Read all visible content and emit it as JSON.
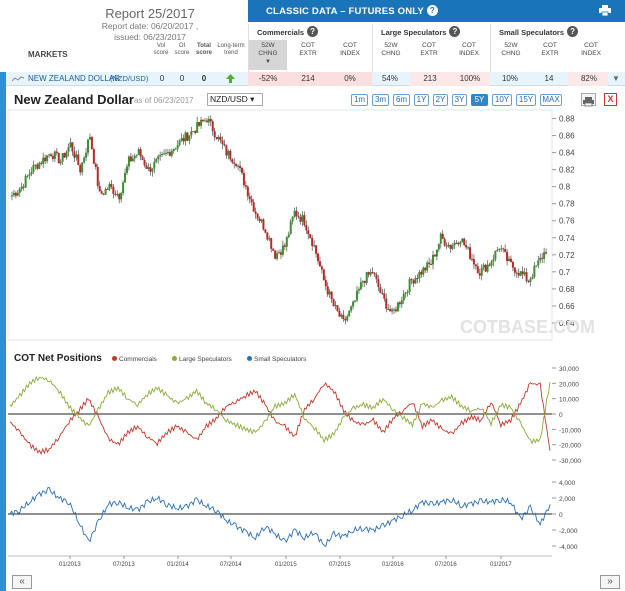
{
  "header": {
    "report_title": "Report 25/2017",
    "report_date": "Report date: 06/20/2017 ,",
    "issued": "issued: 06/23/2017",
    "markets_label": "MARKETS",
    "cols": {
      "vol": "Vol\nscore",
      "oi": "OI\nscore",
      "total": "Total\nscore",
      "trend": "Long-term\ntrend"
    }
  },
  "classic": {
    "title": "CLASSIC DATA – FUTURES ONLY",
    "groups": [
      {
        "title": "Commercials",
        "subs": [
          "52W\nCHNG",
          "COT\nEXTR",
          "COT\nINDEX"
        ]
      },
      {
        "title": "Large Speculators",
        "subs": [
          "52W\nCHNG",
          "COT\nEXTR",
          "COT\nINDEX"
        ]
      },
      {
        "title": "Small Speculators",
        "subs": [
          "52W\nCHNG",
          "COT\nEXTR",
          "COT\nINDEX"
        ]
      }
    ]
  },
  "row": {
    "name": "NEW ZEALAND DOLLAR",
    "symbol": "(NZD/USD)",
    "vol": "0",
    "oi": "0",
    "total": "0",
    "comm": [
      "-52%",
      "214",
      "0%"
    ],
    "large": [
      "54%",
      "213",
      "100%"
    ],
    "small": [
      "10%",
      "14",
      "82%"
    ]
  },
  "chart": {
    "title": "New Zealand Dollar",
    "as_of": "as of 06/23/2017",
    "pair": "NZD/USD ▾",
    "ranges": [
      "1m",
      "3m",
      "6m",
      "1Y",
      "2Y",
      "3Y",
      "5Y",
      "10Y",
      "15Y",
      "MAX"
    ],
    "active_range": "5Y",
    "close_label": "X",
    "watermark": "COTBASE.COM"
  },
  "cot": {
    "title": "COT Net Positions",
    "legend": [
      "Commercials",
      "Large Speculators",
      "Small Speculators"
    ]
  },
  "nav": {
    "prev": "«",
    "next": "»"
  },
  "colors": {
    "accent": "#1a74b8",
    "commercials": "#c0392b",
    "large": "#8aab3a",
    "small": "#2d6fb5"
  },
  "chart_data": [
    {
      "type": "candlestick",
      "title": "New Zealand Dollar",
      "ylim": [
        0.62,
        0.89
      ],
      "yticks": [
        0.64,
        0.66,
        0.68,
        0.7,
        0.72,
        0.74,
        0.76,
        0.78,
        0.8,
        0.82,
        0.84,
        0.86,
        0.88
      ],
      "x_ticks": [
        "01/2013",
        "07/2013",
        "01/2014",
        "07/2014",
        "01/2015",
        "07/2015",
        "01/2016",
        "07/2016",
        "01/2017"
      ],
      "x_range": [
        "06/2012",
        "06/2017"
      ],
      "series": [
        {
          "name": "NZD/USD",
          "values": [
            0.79,
            0.8,
            0.82,
            0.83,
            0.84,
            0.83,
            0.85,
            0.82,
            0.86,
            0.79,
            0.8,
            0.79,
            0.83,
            0.84,
            0.82,
            0.83,
            0.84,
            0.85,
            0.86,
            0.87,
            0.88,
            0.86,
            0.84,
            0.83,
            0.8,
            0.77,
            0.75,
            0.72,
            0.73,
            0.77,
            0.76,
            0.73,
            0.69,
            0.66,
            0.64,
            0.66,
            0.69,
            0.7,
            0.67,
            0.65,
            0.67,
            0.69,
            0.7,
            0.71,
            0.74,
            0.73,
            0.74,
            0.72,
            0.7,
            0.71,
            0.73,
            0.71,
            0.7,
            0.69,
            0.71,
            0.73
          ]
        }
      ]
    },
    {
      "type": "line",
      "title": "COT Net Positions",
      "ylim": [
        -30000,
        30000
      ],
      "yticks": [
        -30000,
        -20000,
        -10000,
        0,
        10000,
        20000,
        30000
      ],
      "series": [
        {
          "name": "Commercials",
          "values": [
            -5000,
            -12000,
            -20000,
            -25000,
            -23000,
            -15000,
            -5000,
            2000,
            10000,
            -2000,
            -16000,
            -20000,
            -12000,
            -8000,
            -15000,
            -19000,
            -12000,
            -8000,
            -12000,
            -17000,
            -8000,
            -3000,
            5000,
            8000,
            12000,
            15000,
            6000,
            -5000,
            -8000,
            -15000,
            3000,
            10000,
            20000,
            15000,
            2000,
            -5000,
            -7000,
            -4000,
            -12000,
            -3000,
            2000,
            8000,
            -8000,
            -4000,
            -10000,
            -13000,
            -6000,
            -2000,
            -4000,
            8000,
            -7000,
            -4000,
            7000,
            20000,
            19000,
            -24000
          ]
        },
        {
          "name": "Large Speculators",
          "values": [
            5000,
            12000,
            20000,
            24000,
            22000,
            15000,
            5000,
            -2000,
            -8000,
            3000,
            14000,
            17000,
            10000,
            6000,
            13000,
            17000,
            12000,
            7000,
            10000,
            15000,
            7000,
            3000,
            -4000,
            -7000,
            -10000,
            -12000,
            -5000,
            5000,
            7000,
            13000,
            -3000,
            -9000,
            -17000,
            -13000,
            -2000,
            4000,
            6000,
            4000,
            10000,
            3000,
            -2000,
            -7000,
            7000,
            4000,
            9000,
            11000,
            5000,
            2000,
            4000,
            -6000,
            6000,
            4000,
            -6000,
            -18000,
            -17000,
            21000
          ]
        },
        {
          "name": "Small Speculators",
          "values": [
            0,
            500,
            1500,
            2500,
            3000,
            2000,
            1500,
            -1000,
            -3500,
            -1000,
            1200,
            1500,
            800,
            500,
            1500,
            2000,
            1200,
            700,
            900,
            1800,
            1000,
            500,
            -800,
            -1500,
            -2200,
            -3000,
            -1500,
            -2500,
            -3500,
            -2000,
            -3000,
            -2200,
            -4000,
            -2500,
            -2800,
            -2000,
            -1800,
            -2000,
            -1500,
            -800,
            -200,
            500,
            1500,
            1200,
            1500,
            1800,
            1000,
            1300,
            1600,
            1500,
            1800,
            1500,
            -600,
            800,
            -1300,
            1200
          ]
        }
      ]
    }
  ]
}
